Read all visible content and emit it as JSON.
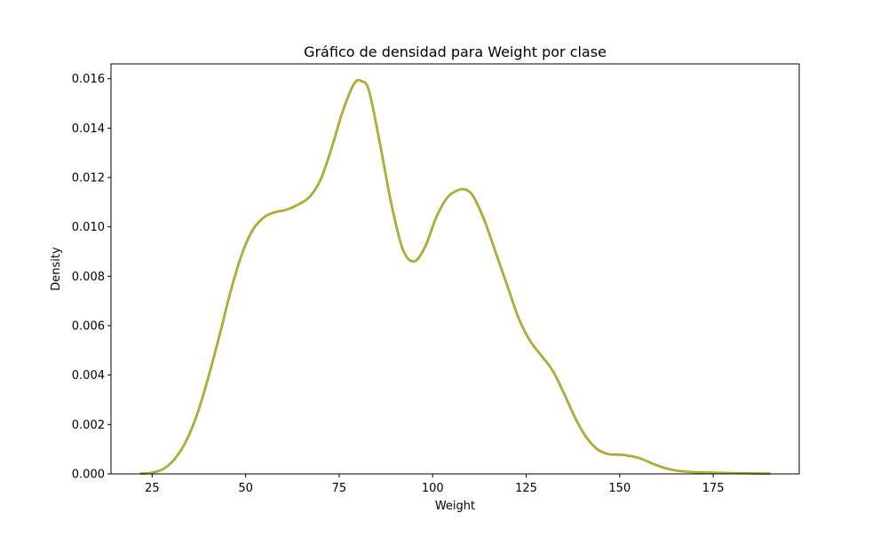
{
  "chart_data": {
    "type": "line",
    "title": "Gráfico de densidad para Weight por clase",
    "xlabel": "Weight",
    "ylabel": "Density",
    "xlim": [
      14,
      198
    ],
    "ylim": [
      0,
      0.0166
    ],
    "xticks": [
      25,
      50,
      75,
      100,
      125,
      150,
      175
    ],
    "xtick_labels": [
      "25",
      "50",
      "75",
      "100",
      "125",
      "150",
      "175"
    ],
    "yticks": [
      0,
      0.002,
      0.004,
      0.006,
      0.008,
      0.01,
      0.012,
      0.014,
      0.016
    ],
    "ytick_labels": [
      "0.000",
      "0.002",
      "0.004",
      "0.006",
      "0.008",
      "0.010",
      "0.012",
      "0.014",
      "0.016"
    ],
    "grid": false,
    "series": [
      {
        "color": "#bcbd22",
        "x": [
          22,
          25,
          28,
          31,
          34,
          37,
          40,
          43,
          46,
          49,
          52,
          55,
          58,
          61,
          64,
          67,
          70,
          73,
          76,
          79,
          81,
          83,
          86,
          89,
          92,
          95,
          98,
          101,
          104,
          107,
          109,
          111,
          114,
          117,
          120,
          123,
          126,
          129,
          132,
          135,
          138,
          141,
          144,
          147,
          150,
          153,
          156,
          159,
          162,
          165,
          168,
          171,
          174,
          177,
          180,
          185,
          190
        ],
        "y": [
          1e-05,
          5e-05,
          0.0002,
          0.0006,
          0.0013,
          0.0024,
          0.0039,
          0.0056,
          0.0074,
          0.0089,
          0.0099,
          0.0104,
          0.0106,
          0.0107,
          0.0109,
          0.0112,
          0.0119,
          0.0132,
          0.0147,
          0.0158,
          0.0159,
          0.0155,
          0.0133,
          0.0109,
          0.0091,
          0.0086,
          0.0092,
          0.0104,
          0.0112,
          0.0115,
          0.0115,
          0.0112,
          0.0102,
          0.0089,
          0.0076,
          0.0063,
          0.0054,
          0.0048,
          0.0042,
          0.0033,
          0.0023,
          0.0015,
          0.001,
          0.0008,
          0.00078,
          0.00072,
          0.0006,
          0.0004,
          0.00024,
          0.00014,
          9e-05,
          6e-05,
          5e-05,
          4e-05,
          3e-05,
          2e-05,
          1e-05
        ]
      }
    ]
  }
}
